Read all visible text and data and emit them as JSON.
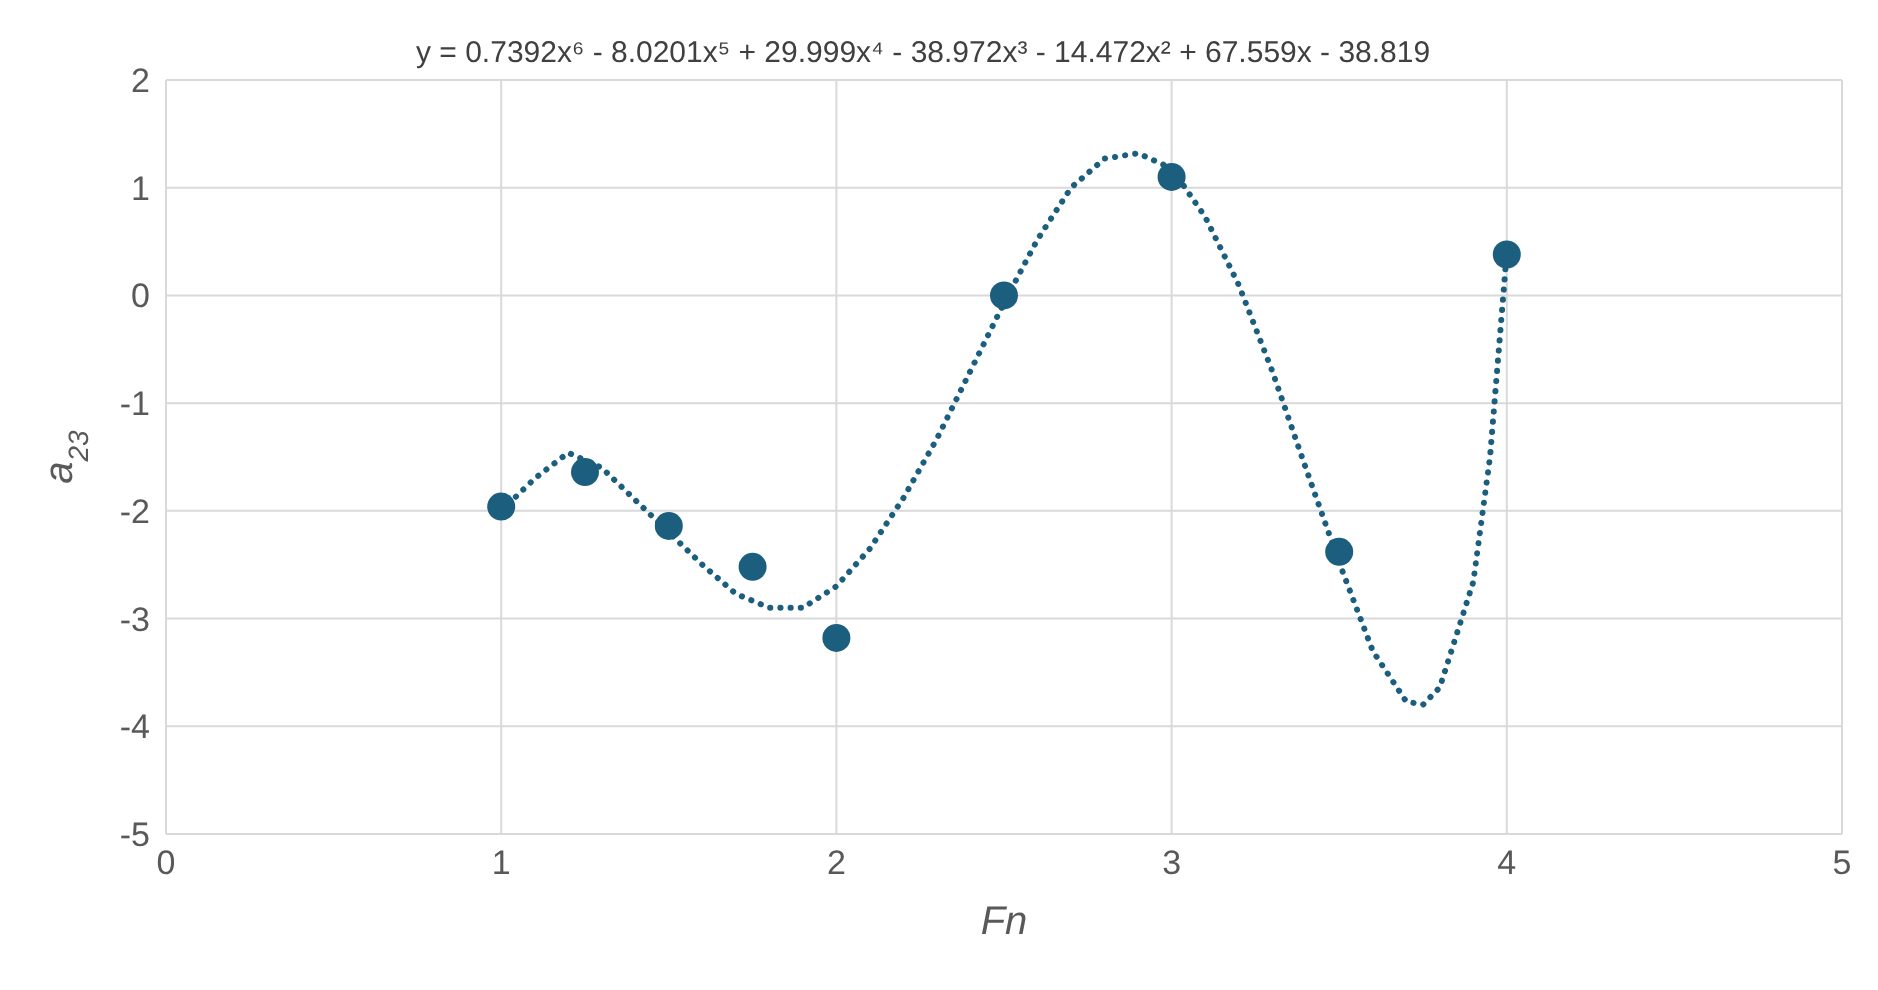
{
  "chart_data": {
    "type": "scatter",
    "xlabel": "Fn",
    "ylabel": "a$_{23}$",
    "annotations": [
      "y = 0.7392x⁶ - 8.0201x⁵ + 29.999x⁴ - 38.972x³ - 14.472x² + 67.559x - 38.819"
    ],
    "xlim": [
      0,
      5
    ],
    "xticks": [
      0,
      1,
      2,
      3,
      4,
      5
    ],
    "ylim": [
      -5,
      2
    ],
    "yticks": [
      -5,
      -4,
      -3,
      -2,
      -1,
      0,
      1,
      2
    ],
    "grid": true,
    "series": [
      {
        "type": "scatter",
        "color": "#1b5e7e",
        "marker": "circle",
        "x": [
          1,
          1.25,
          1.5,
          1.75,
          2,
          2.5,
          3,
          3.5,
          4
        ],
        "values": [
          -1.96,
          -1.64,
          -2.14,
          -2.52,
          -3.18,
          0,
          1.1,
          -2.38,
          0.38
        ]
      },
      {
        "type": "line",
        "color": "#1b5e7e",
        "marker": "none",
        "line_style": "dotted",
        "x": [
          1,
          1.1,
          1.2,
          1.3,
          1.4,
          1.5,
          1.6,
          1.7,
          1.8,
          1.9,
          2,
          2.1,
          2.2,
          2.3,
          2.4,
          2.5,
          2.6,
          2.7,
          2.8,
          2.9,
          3,
          3.1,
          3.2,
          3.3,
          3.4,
          3.5,
          3.6,
          3.7,
          3.75,
          3.8,
          3.9,
          3.95,
          4
        ],
        "values": [
          -2.0,
          -1.7,
          -1.46,
          -1.6,
          -1.9,
          -2.2,
          -2.5,
          -2.77,
          -2.9,
          -2.9,
          -2.7,
          -2.35,
          -1.88,
          -1.33,
          -0.7,
          -0.07,
          0.52,
          1.0,
          1.27,
          1.32,
          1.18,
          0.73,
          0.1,
          -0.7,
          -1.6,
          -2.48,
          -3.3,
          -3.77,
          -3.8,
          -3.64,
          -2.66,
          -1.5,
          0.4
        ]
      }
    ]
  }
}
